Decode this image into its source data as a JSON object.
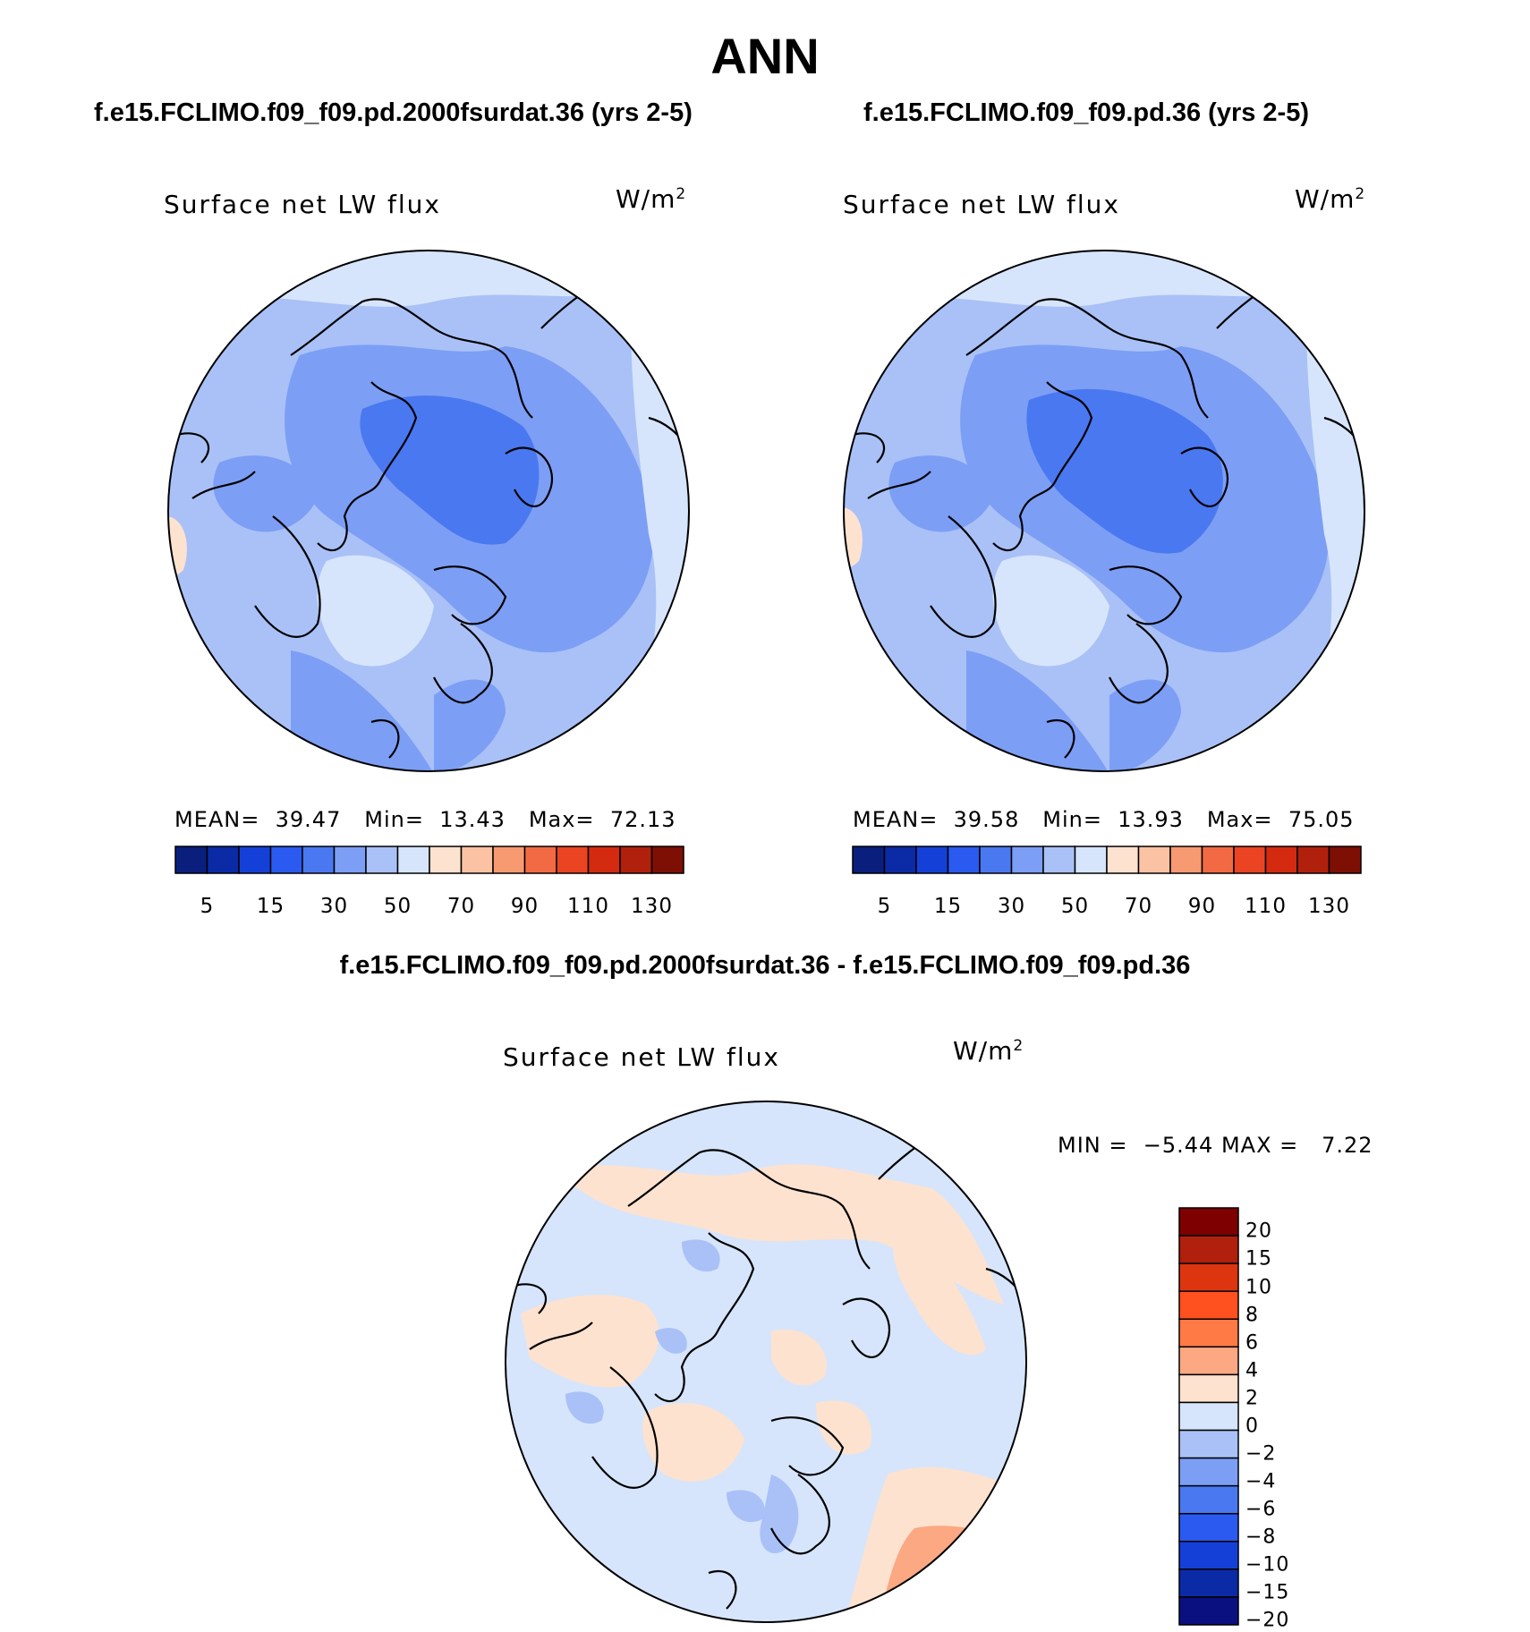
{
  "season": "ANN",
  "panels": [
    {
      "case_title": "f.e15.FCLIMO.f09_f09.pd.2000fsurdat.36 (yrs 2-5)",
      "variable": "Surface net LW flux",
      "units": "W/m",
      "units_exponent": "2",
      "stats": {
        "mean_label": "MEAN=",
        "mean": "39.47",
        "min_label": "Min=",
        "min": "13.43",
        "max_label": "Max=",
        "max": "72.13"
      },
      "colorbar_ticks": [
        "5",
        "15",
        "30",
        "50",
        "70",
        "90",
        "110",
        "130"
      ]
    },
    {
      "case_title": "f.e15.FCLIMO.f09_f09.pd.36 (yrs 2-5)",
      "variable": "Surface net LW flux",
      "units": "W/m",
      "units_exponent": "2",
      "stats": {
        "mean_label": "MEAN=",
        "mean": "39.58",
        "min_label": "Min=",
        "min": "13.93",
        "max_label": "Max=",
        "max": "75.05"
      },
      "colorbar_ticks": [
        "5",
        "15",
        "30",
        "50",
        "70",
        "90",
        "110",
        "130"
      ]
    }
  ],
  "difference": {
    "title": "f.e15.FCLIMO.f09_f09.pd.2000fsurdat.36 - f.e15.FCLIMO.f09_f09.pd.36",
    "variable": "Surface net LW flux",
    "units": "W/m",
    "units_exponent": "2",
    "min_label": "MIN =",
    "min": "−5.44",
    "max_label": "MAX =",
    "max": "7.22",
    "colorbar_ticks": [
      "20",
      "15",
      "10",
      "8",
      "6",
      "4",
      "2",
      "0",
      "−2",
      "−4",
      "−6",
      "−8",
      "−10",
      "−15",
      "−20"
    ]
  },
  "colors": {
    "abs_scale": [
      "#0a1f7d",
      "#0b2aa6",
      "#1540d8",
      "#2a5af0",
      "#4a78f0",
      "#7c9ef5",
      "#a9c1f7",
      "#d6e5fb",
      "#fde2cf",
      "#fbc3a3",
      "#f79a72",
      "#f26a44",
      "#ea4422",
      "#d42a10",
      "#b0200c",
      "#7e0f05"
    ],
    "diff_scale": [
      "#7e0000",
      "#b0200c",
      "#dc3510",
      "#ff5020",
      "#ff7a45",
      "#fba883",
      "#fde2cf",
      "#d6e5fb",
      "#a9c1f7",
      "#7c9ef5",
      "#4a78f0",
      "#2a5af0",
      "#1540d8",
      "#0b2aa6",
      "#0a1080"
    ],
    "map_background_abs": "#6f9bf3",
    "map_background_diff": "#d6e5fb"
  }
}
